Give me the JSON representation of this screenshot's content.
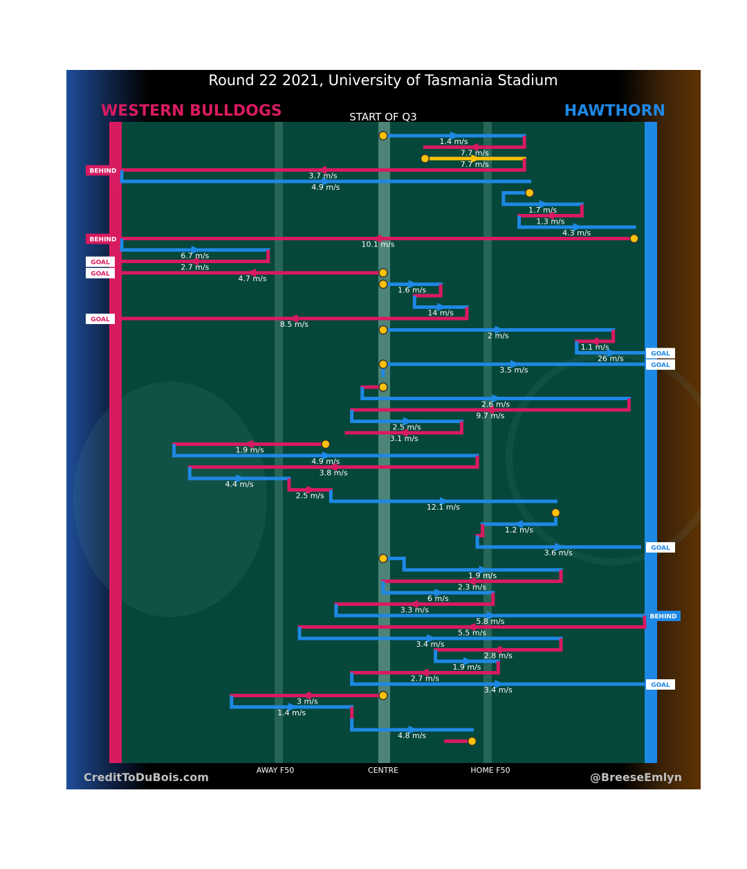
{
  "chart_data": {
    "type": "line",
    "title": "Round 22 2021, University of Tasmania Stadium",
    "subtitle": "START OF Q3",
    "teams": {
      "left": {
        "name": "WESTERN BULLDOGS",
        "color": "#d81b60"
      },
      "right": {
        "name": "HAWTHORN",
        "color": "#1e88e5"
      }
    },
    "x_tick_labels": [
      "AWAY F50",
      "CENTRE",
      "HOME F50"
    ],
    "credits": {
      "left": "CreditToDuBois.com",
      "right": "@BreeseEmlyn"
    },
    "colors": {
      "bulldogs": "#d81b60",
      "hawthorn": "#1e88e5",
      "gold": "#ffc107",
      "field": "#06473b"
    },
    "events": [
      {
        "team": "hawthorn",
        "from": 0.5,
        "to": 0.77,
        "label": "1.4 m/s",
        "kind": "chain"
      },
      {
        "team": "bulldogs",
        "from": 0.77,
        "to": 0.58,
        "label": "7.7 m/s",
        "kind": "chain"
      },
      {
        "team": "gold",
        "from": 0.58,
        "to": 0.77,
        "label": "7.7 m/s",
        "kind": "chain"
      },
      {
        "team": "bulldogs",
        "from": 0.77,
        "to": 0.0,
        "label": "3.7 m/s",
        "kind": "chain",
        "score": "BEHIND"
      },
      {
        "team": "hawthorn",
        "from": 0.0,
        "to": 0.78,
        "label": "4.9 m/s",
        "kind": "chain"
      },
      {
        "team": "hawthorn",
        "from": 0.78,
        "to": 0.73,
        "label": "",
        "kind": "chain"
      },
      {
        "team": "hawthorn",
        "from": 0.73,
        "to": 0.88,
        "label": "1.7 m/s",
        "kind": "chain"
      },
      {
        "team": "bulldogs",
        "from": 0.88,
        "to": 0.76,
        "label": "1.3 m/s",
        "kind": "chain"
      },
      {
        "team": "hawthorn",
        "from": 0.76,
        "to": 0.98,
        "label": "4.3 m/s",
        "kind": "chain"
      },
      {
        "team": "bulldogs",
        "from": 0.98,
        "to": 0.0,
        "label": "10.1 m/s",
        "kind": "chain",
        "score": "BEHIND"
      },
      {
        "team": "hawthorn",
        "from": 0.0,
        "to": 0.28,
        "label": "6.7 m/s",
        "kind": "chain"
      },
      {
        "team": "bulldogs",
        "from": 0.28,
        "to": 0.0,
        "label": "2.7 m/s",
        "kind": "chain",
        "score": "GOAL"
      },
      {
        "team": "bulldogs",
        "from": 0.5,
        "to": 0.0,
        "label": "4.7 m/s",
        "kind": "chain",
        "score": "GOAL"
      },
      {
        "team": "hawthorn",
        "from": 0.5,
        "to": 0.61,
        "label": "1.6 m/s",
        "kind": "chain"
      },
      {
        "team": "bulldogs",
        "from": 0.61,
        "to": 0.56,
        "label": "",
        "kind": "chain"
      },
      {
        "team": "hawthorn",
        "from": 0.56,
        "to": 0.66,
        "label": "14 m/s",
        "kind": "chain"
      },
      {
        "team": "bulldogs",
        "from": 0.66,
        "to": 0.0,
        "label": "8.5 m/s",
        "kind": "chain",
        "score": "GOAL"
      },
      {
        "team": "hawthorn",
        "from": 0.5,
        "to": 0.94,
        "label": "2 m/s",
        "kind": "chain"
      },
      {
        "team": "bulldogs",
        "from": 0.94,
        "to": 0.87,
        "label": "1.1 m/s",
        "kind": "chain"
      },
      {
        "team": "hawthorn",
        "from": 0.87,
        "to": 1.0,
        "label": "26 m/s",
        "kind": "chain",
        "score": "GOAL"
      },
      {
        "team": "hawthorn",
        "from": 0.5,
        "to": 1.0,
        "label": "3.5 m/s",
        "kind": "chain",
        "score": "GOAL"
      },
      {
        "team": "hawthorn",
        "from": 0.5,
        "to": 0.5,
        "label": "",
        "kind": "chain"
      },
      {
        "team": "bulldogs",
        "from": 0.5,
        "to": 0.46,
        "label": "",
        "kind": "chain"
      },
      {
        "team": "hawthorn",
        "from": 0.46,
        "to": 0.97,
        "label": "2.6 m/s",
        "kind": "chain"
      },
      {
        "team": "bulldogs",
        "from": 0.97,
        "to": 0.44,
        "label": "9.7 m/s",
        "kind": "chain"
      },
      {
        "team": "hawthorn",
        "from": 0.44,
        "to": 0.65,
        "label": "2.5 m/s",
        "kind": "chain"
      },
      {
        "team": "bulldogs",
        "from": 0.65,
        "to": 0.43,
        "label": "3.1 m/s",
        "kind": "chain"
      },
      {
        "team": "bulldogs",
        "from": 0.39,
        "to": 0.1,
        "label": "1.9 m/s",
        "kind": "chain"
      },
      {
        "team": "hawthorn",
        "from": 0.1,
        "to": 0.68,
        "label": "4.9 m/s",
        "kind": "chain"
      },
      {
        "team": "bulldogs",
        "from": 0.68,
        "to": 0.13,
        "label": "3.8 m/s",
        "kind": "chain"
      },
      {
        "team": "hawthorn",
        "from": 0.13,
        "to": 0.32,
        "label": "4.4 m/s",
        "kind": "chain"
      },
      {
        "team": "bulldogs",
        "from": 0.32,
        "to": 0.4,
        "label": "2.5 m/s",
        "kind": "chain"
      },
      {
        "team": "hawthorn",
        "from": 0.4,
        "to": 0.83,
        "label": "12.1 m/s",
        "kind": "chain"
      },
      {
        "team": "bulldogs",
        "from": 0.83,
        "to": 0.83,
        "label": "",
        "kind": "chain"
      },
      {
        "team": "hawthorn",
        "from": 0.83,
        "to": 0.69,
        "label": "1.2 m/s",
        "kind": "chain"
      },
      {
        "team": "bulldogs",
        "from": 0.69,
        "to": 0.68,
        "label": "",
        "kind": "chain"
      },
      {
        "team": "hawthorn",
        "from": 0.68,
        "to": 0.99,
        "label": "3.6 m/s",
        "kind": "chain",
        "score": "GOAL"
      },
      {
        "team": "hawthorn",
        "from": 0.5,
        "to": 0.54,
        "label": "",
        "kind": "chain"
      },
      {
        "team": "hawthorn",
        "from": 0.54,
        "to": 0.84,
        "label": "1.9 m/s",
        "kind": "chain"
      },
      {
        "team": "bulldogs",
        "from": 0.84,
        "to": 0.5,
        "label": "2.3 m/s",
        "kind": "chain"
      },
      {
        "team": "hawthorn",
        "from": 0.5,
        "to": 0.71,
        "label": "6 m/s",
        "kind": "chain"
      },
      {
        "team": "bulldogs",
        "from": 0.71,
        "to": 0.41,
        "label": "3.3 m/s",
        "kind": "chain"
      },
      {
        "team": "hawthorn",
        "from": 0.41,
        "to": 1.0,
        "label": "5.8 m/s",
        "kind": "chain",
        "score": "BEHIND"
      },
      {
        "team": "bulldogs",
        "from": 1.0,
        "to": 0.34,
        "label": "5.5 m/s",
        "kind": "chain"
      },
      {
        "team": "hawthorn",
        "from": 0.34,
        "to": 0.84,
        "label": "3.4 m/s",
        "kind": "chain"
      },
      {
        "team": "bulldogs",
        "from": 0.84,
        "to": 0.6,
        "label": "2.8 m/s",
        "kind": "chain"
      },
      {
        "team": "hawthorn",
        "from": 0.6,
        "to": 0.72,
        "label": "1.9 m/s",
        "kind": "chain"
      },
      {
        "team": "bulldogs",
        "from": 0.72,
        "to": 0.44,
        "label": "2.7 m/s",
        "kind": "chain"
      },
      {
        "team": "hawthorn",
        "from": 0.44,
        "to": 1.0,
        "label": "3.4 m/s",
        "kind": "chain",
        "score": "GOAL"
      },
      {
        "team": "bulldogs",
        "from": 0.5,
        "to": 0.21,
        "label": "3 m/s",
        "kind": "chain"
      },
      {
        "team": "hawthorn",
        "from": 0.21,
        "to": 0.44,
        "label": "1.4 m/s",
        "kind": "chain"
      },
      {
        "team": "bulldogs",
        "from": 0.44,
        "to": 0.44,
        "label": "",
        "kind": "chain"
      },
      {
        "team": "hawthorn",
        "from": 0.44,
        "to": 0.67,
        "label": "4.8 m/s",
        "kind": "chain"
      },
      {
        "team": "bulldogs",
        "from": 0.67,
        "to": 0.62,
        "label": "",
        "kind": "chain"
      }
    ],
    "stoppages": [
      0,
      2,
      5,
      9,
      12,
      13,
      17,
      20,
      22,
      27,
      33,
      37,
      49,
      53
    ]
  }
}
